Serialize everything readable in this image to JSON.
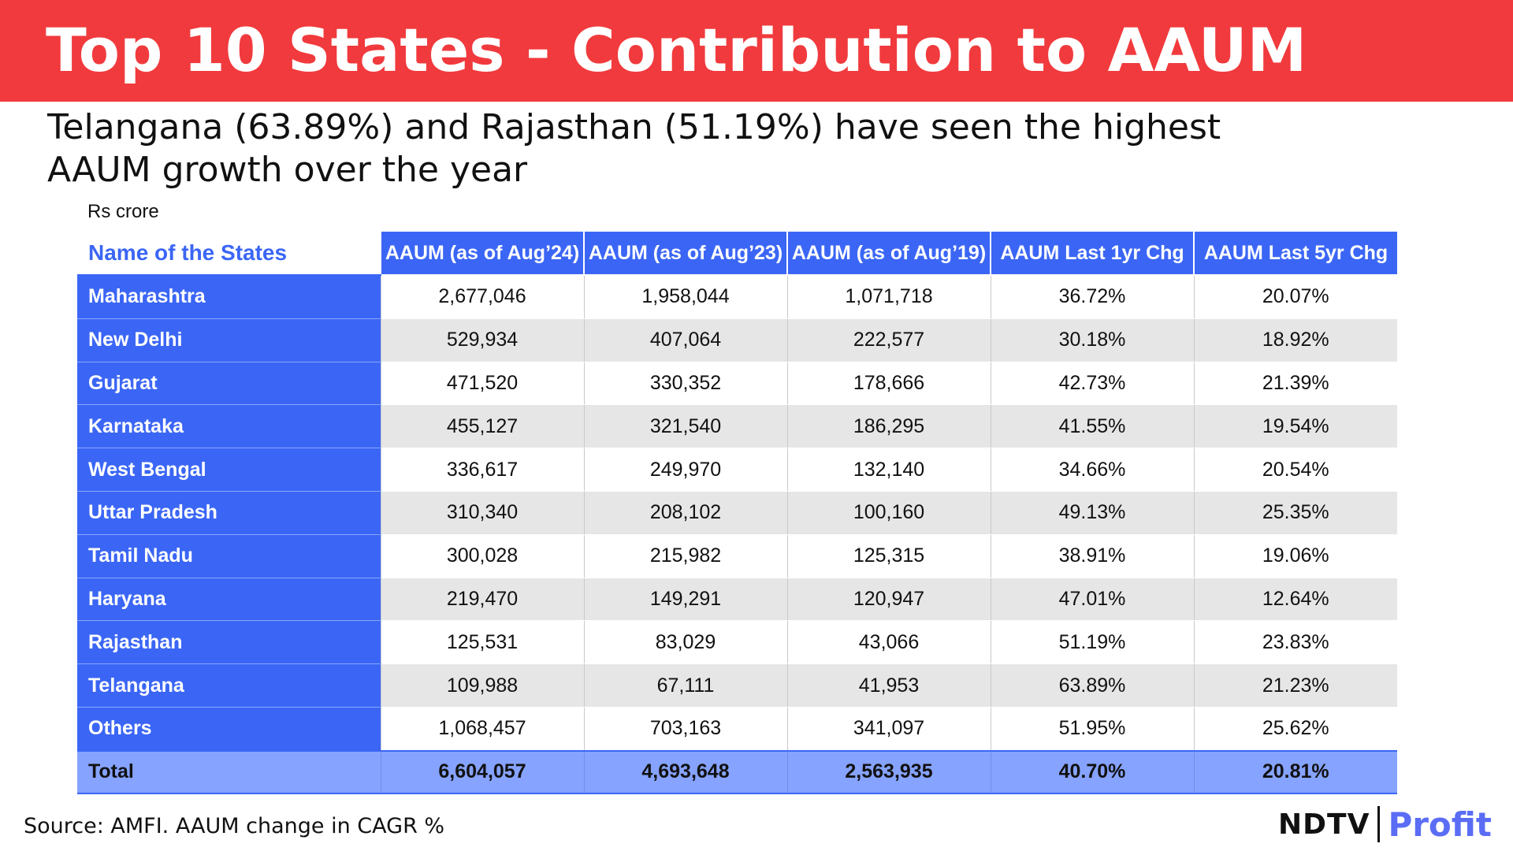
{
  "banner": {
    "title": "Top 10 States - Contribution to AAUM"
  },
  "subtitle": "Telangana (63.89%) and Rajasthan (51.19%) have seen the highest AAUM growth over the year",
  "unit": "Rs crore",
  "table": {
    "headers": [
      "Name of the States",
      "AAUM (as of Aug’24)",
      "AAUM (as of Aug’23)",
      "AAUM (as of Aug’19)",
      "AAUM Last 1yr Chg",
      "AAUM Last 5yr Chg"
    ],
    "rows": [
      [
        "Maharashtra",
        "2,677,046",
        "1,958,044",
        "1,071,718",
        "36.72%",
        "20.07%"
      ],
      [
        "New Delhi",
        "529,934",
        "407,064",
        "222,577",
        "30.18%",
        "18.92%"
      ],
      [
        "Gujarat",
        "471,520",
        "330,352",
        "178,666",
        "42.73%",
        "21.39%"
      ],
      [
        "Karnataka",
        "455,127",
        "321,540",
        "186,295",
        "41.55%",
        "19.54%"
      ],
      [
        "West Bengal",
        "336,617",
        "249,970",
        "132,140",
        "34.66%",
        "20.54%"
      ],
      [
        "Uttar Pradesh",
        "310,340",
        "208,102",
        "100,160",
        "49.13%",
        "25.35%"
      ],
      [
        "Tamil Nadu",
        "300,028",
        "215,982",
        "125,315",
        "38.91%",
        "19.06%"
      ],
      [
        "Haryana",
        "219,470",
        "149,291",
        "120,947",
        "47.01%",
        "12.64%"
      ],
      [
        "Rajasthan",
        "125,531",
        "83,029",
        "43,066",
        "51.19%",
        "23.83%"
      ],
      [
        "Telangana",
        "109,988",
        "67,111",
        "41,953",
        "63.89%",
        "21.23%"
      ],
      [
        "Others",
        "1,068,457",
        "703,163",
        "341,097",
        "51.95%",
        "25.62%"
      ]
    ],
    "total": [
      "Total",
      "6,604,057",
      "4,693,648",
      "2,563,935",
      "40.70%",
      "20.81%"
    ]
  },
  "footer": {
    "source": "Source: AMFI. AAUM change in CAGR %",
    "logo_left": "NDTV",
    "logo_right": "Profit"
  },
  "colors": {
    "banner": "#f13a3d",
    "accent_blue": "#3b66f5",
    "total_row": "#86a3ff"
  }
}
